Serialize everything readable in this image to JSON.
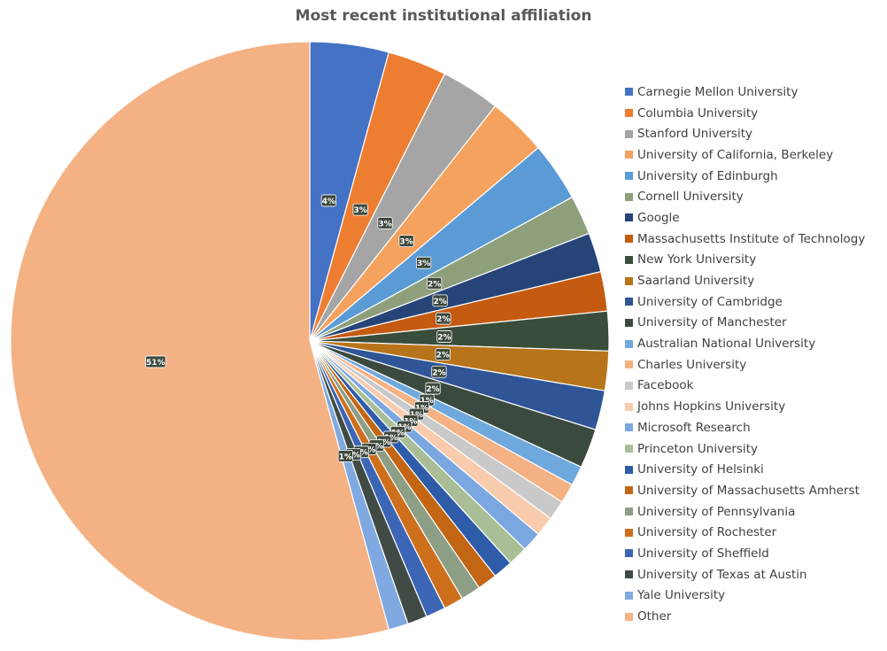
{
  "chart_data": {
    "type": "pie",
    "title": "Most recent institutional affiliation",
    "legend_position": "right",
    "slices": [
      {
        "name": "Carnegie Mellon University",
        "value": 4,
        "label": "4%",
        "color": "#4472C4"
      },
      {
        "name": "Columbia University",
        "value": 3,
        "label": "3%",
        "color": "#ED7D31"
      },
      {
        "name": "Stanford University",
        "value": 3,
        "label": "3%",
        "color": "#A5A5A5"
      },
      {
        "name": "University of California, Berkeley",
        "value": 3,
        "label": "3%",
        "color": "#F4A25E"
      },
      {
        "name": "University of Edinburgh",
        "value": 3,
        "label": "3%",
        "color": "#5B9BD5"
      },
      {
        "name": "Cornell University",
        "value": 2,
        "label": "2%",
        "color": "#8E9F7C"
      },
      {
        "name": "Google",
        "value": 2,
        "label": "2%",
        "color": "#264478"
      },
      {
        "name": "Massachusetts Institute of Technology",
        "value": 2,
        "label": "2%",
        "color": "#C55A11"
      },
      {
        "name": "New York University",
        "value": 2,
        "label": "2%",
        "color": "#3A4D3A"
      },
      {
        "name": "Saarland University",
        "value": 2,
        "label": "2%",
        "color": "#B8741A"
      },
      {
        "name": "University of Cambridge",
        "value": 2,
        "label": "2%",
        "color": "#2F5597"
      },
      {
        "name": "University of Manchester",
        "value": 2,
        "label": "2%",
        "color": "#3B4A3F"
      },
      {
        "name": "Australian National University",
        "value": 1,
        "label": "1%",
        "color": "#6FA8DC"
      },
      {
        "name": "Charles University",
        "value": 1,
        "label": "1%",
        "color": "#F4B183"
      },
      {
        "name": "Facebook",
        "value": 1,
        "label": "1%",
        "color": "#C9C9C9"
      },
      {
        "name": "Johns Hopkins University",
        "value": 1,
        "label": "1%",
        "color": "#F8CBAD"
      },
      {
        "name": "Microsoft Research",
        "value": 1,
        "label": "1%",
        "color": "#7BA7E0"
      },
      {
        "name": "Princeton University",
        "value": 1,
        "label": "1%",
        "color": "#A9BE96"
      },
      {
        "name": "University of Helsinki",
        "value": 1,
        "label": "1%",
        "color": "#2E5CA8"
      },
      {
        "name": "University of Massachusetts Amherst",
        "value": 1,
        "label": "1%",
        "color": "#C26614"
      },
      {
        "name": "University of Pennsylvania",
        "value": 1,
        "label": "1%",
        "color": "#8C9E84"
      },
      {
        "name": "University of Rochester",
        "value": 1,
        "label": "1%",
        "color": "#CE6F1C"
      },
      {
        "name": "University of Sheffield",
        "value": 1,
        "label": "1%",
        "color": "#3C66B5"
      },
      {
        "name": "University of Texas at Austin",
        "value": 1,
        "label": "1%",
        "color": "#3F4B44"
      },
      {
        "name": "Yale University",
        "value": 1,
        "label": "1%",
        "color": "#7FA9E0"
      },
      {
        "name": "Other",
        "value": 51,
        "label": "51%",
        "color": "#F4B183"
      }
    ]
  }
}
